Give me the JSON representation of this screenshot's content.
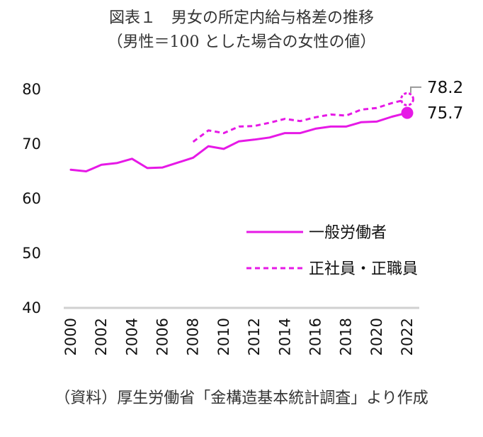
{
  "chart_data": {
    "type": "line",
    "title": "図表１　男女の所定内給与格差の推移",
    "subtitle": "（男性＝100 とした場合の女性の値）",
    "source": "（資料）厚生労働省「金構造基本統計調査」より作成",
    "xlabel": "",
    "ylabel": "",
    "ylim": [
      40,
      80
    ],
    "yticks": [
      40,
      50,
      60,
      70,
      80
    ],
    "xticks": [
      2000,
      2002,
      2004,
      2006,
      2008,
      2010,
      2012,
      2014,
      2016,
      2018,
      2020,
      2022
    ],
    "grid": false,
    "legend_position": "bottom-right",
    "series": [
      {
        "name": "一般労働者",
        "style": "solid",
        "color": "#e619e6",
        "x": [
          2000,
          2001,
          2002,
          2003,
          2004,
          2005,
          2006,
          2007,
          2008,
          2009,
          2010,
          2011,
          2012,
          2013,
          2014,
          2015,
          2016,
          2017,
          2018,
          2019,
          2020,
          2021,
          2022
        ],
        "values": [
          65.3,
          65.0,
          66.2,
          66.5,
          67.3,
          65.6,
          65.7,
          66.6,
          67.5,
          69.6,
          69.1,
          70.5,
          70.8,
          71.2,
          72.0,
          72.0,
          72.8,
          73.2,
          73.2,
          74.0,
          74.1,
          75.0,
          75.7
        ],
        "end_label": "75.7"
      },
      {
        "name": "正社員・正職員",
        "style": "dashed",
        "color": "#e619e6",
        "x": [
          2008,
          2009,
          2010,
          2011,
          2012,
          2013,
          2014,
          2015,
          2016,
          2017,
          2018,
          2019,
          2020,
          2021,
          2022
        ],
        "values": [
          70.4,
          72.5,
          72.0,
          73.2,
          73.3,
          73.9,
          74.6,
          74.2,
          74.9,
          75.4,
          75.2,
          76.3,
          76.6,
          77.5,
          78.2
        ],
        "end_label": "78.2"
      }
    ]
  }
}
